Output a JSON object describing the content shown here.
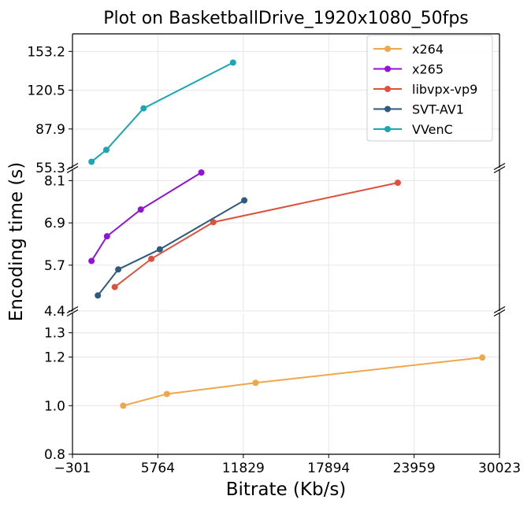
{
  "chart_data": {
    "type": "line",
    "title": "Plot on BasketballDrive_1920x1080_50fps",
    "xlabel": "Bitrate (Kb/s)",
    "ylabel": "Encoding time (s)",
    "x_ticks": [
      -301,
      5764,
      11829,
      17894,
      23959,
      30023
    ],
    "xlim": [
      -301,
      30023
    ],
    "grid": true,
    "legend_position": "top-right",
    "panels": [
      {
        "id": "top",
        "ylim": [
          55.3,
          168
        ],
        "y_ticks": [
          "55.3",
          "87.9",
          "120.5",
          "153.2"
        ]
      },
      {
        "id": "mid",
        "ylim": [
          4.4,
          8.4
        ],
        "y_ticks": [
          "4.4",
          "5.7",
          "6.9",
          "8.1"
        ]
      },
      {
        "id": "bottom",
        "ylim": [
          0.8,
          1.38
        ],
        "y_ticks": [
          "0.8",
          "1.0",
          "1.2",
          "1.3"
        ]
      }
    ],
    "series": [
      {
        "name": "x264",
        "color": "#f0a64a",
        "panel": "bottom",
        "points": [
          [
            3300,
            1.0
          ],
          [
            6400,
            1.048
          ],
          [
            12700,
            1.094
          ],
          [
            28800,
            1.198
          ]
        ]
      },
      {
        "name": "x265",
        "color": "#9013d6",
        "panel": "mid",
        "points": [
          [
            1050,
            5.82
          ],
          [
            2150,
            6.52
          ],
          [
            4550,
            7.28
          ],
          [
            8850,
            8.33
          ]
        ]
      },
      {
        "name": "libvpx-vp9",
        "color": "#df513c",
        "panel": "mid",
        "points": [
          [
            2700,
            5.08
          ],
          [
            5300,
            5.88
          ],
          [
            9700,
            6.92
          ],
          [
            22800,
            8.04
          ]
        ]
      },
      {
        "name": "SVT-AV1",
        "color": "#2d5a7e",
        "panel": "mid",
        "points": [
          [
            1500,
            4.84
          ],
          [
            2950,
            5.58
          ],
          [
            5900,
            6.15
          ],
          [
            11900,
            7.54
          ]
        ]
      },
      {
        "name": "VVenC",
        "color": "#18a7b3",
        "panel": "top",
        "points": [
          [
            1050,
            60.3
          ],
          [
            2100,
            70.3
          ],
          [
            4750,
            105.3
          ],
          [
            11100,
            143.8
          ]
        ]
      }
    ]
  }
}
